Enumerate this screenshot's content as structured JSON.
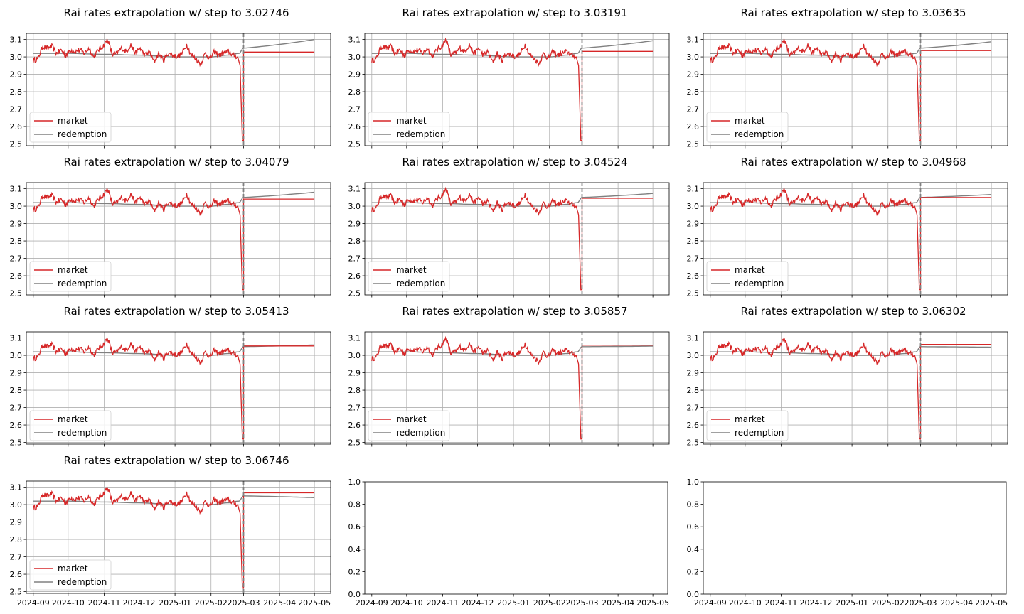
{
  "figure": {
    "panels": [
      {
        "title": "Rai rates extrapolation w/ step to 3.02746",
        "step": 3.02746,
        "redemption_end": 3.1
      },
      {
        "title": "Rai rates extrapolation w/ step to 3.03191",
        "step": 3.03191,
        "redemption_end": 3.093
      },
      {
        "title": "Rai rates extrapolation w/ step to 3.03635",
        "step": 3.03635,
        "redemption_end": 3.087
      },
      {
        "title": "Rai rates extrapolation w/ step to 3.04079",
        "step": 3.04079,
        "redemption_end": 3.08
      },
      {
        "title": "Rai rates extrapolation w/ step to 3.04524",
        "step": 3.04524,
        "redemption_end": 3.073
      },
      {
        "title": "Rai rates extrapolation w/ step to 3.04968",
        "step": 3.04968,
        "redemption_end": 3.067
      },
      {
        "title": "Rai rates extrapolation w/ step to 3.05413",
        "step": 3.05413,
        "redemption_end": 3.06
      },
      {
        "title": "Rai rates extrapolation w/ step to 3.05857",
        "step": 3.05857,
        "redemption_end": 3.053
      },
      {
        "title": "Rai rates extrapolation w/ step to 3.06302",
        "step": 3.06302,
        "redemption_end": 3.047
      },
      {
        "title": "Rai rates extrapolation w/ step to 3.06746",
        "step": 3.06746,
        "redemption_end": 3.04
      }
    ],
    "empty_panel_yticks": [
      "0.0",
      "0.2",
      "0.4",
      "0.6",
      "0.8",
      "1.0"
    ]
  },
  "chart_data": {
    "type": "line",
    "x_ticks": [
      "2024-09",
      "2024-10",
      "2024-11",
      "2024-12",
      "2025-01",
      "2025-02",
      "2025-03",
      "2025-04",
      "2025-05"
    ],
    "y_ticks": [
      "2.5",
      "2.6",
      "2.7",
      "2.8",
      "2.9",
      "3.0",
      "3.1"
    ],
    "ylim": [
      2.49,
      3.135
    ],
    "xlim": [
      "2024-08-26",
      "2025-05-15"
    ],
    "grid": true,
    "legend": [
      "market",
      "redemption"
    ],
    "legend_placement": "lower-left",
    "step_date": "2025-03-01",
    "extrapolation_end": "2025-05-01",
    "colors": {
      "market": "#d62728",
      "redemption": "#808080",
      "step_line": "#808080"
    },
    "market_history": {
      "dates": [
        "2024-09-01",
        "2024-09-05",
        "2024-09-09",
        "2024-09-13",
        "2024-09-17",
        "2024-09-21",
        "2024-09-25",
        "2024-09-29",
        "2024-10-03",
        "2024-10-07",
        "2024-10-11",
        "2024-10-15",
        "2024-10-19",
        "2024-10-23",
        "2024-10-27",
        "2024-10-31",
        "2024-11-04",
        "2024-11-08",
        "2024-11-12",
        "2024-11-16",
        "2024-11-20",
        "2024-11-24",
        "2024-11-28",
        "2024-12-02",
        "2024-12-06",
        "2024-12-10",
        "2024-12-14",
        "2024-12-18",
        "2024-12-22",
        "2024-12-26",
        "2024-12-30",
        "2025-01-03",
        "2025-01-07",
        "2025-01-11",
        "2025-01-15",
        "2025-01-19",
        "2025-01-23",
        "2025-01-27",
        "2025-01-31",
        "2025-02-04",
        "2025-02-08",
        "2025-02-12",
        "2025-02-16",
        "2025-02-20",
        "2025-02-24",
        "2025-02-26",
        "2025-02-28",
        "2025-03-01"
      ],
      "values": [
        2.98,
        2.99,
        3.06,
        3.05,
        3.06,
        3.02,
        3.04,
        3.01,
        3.04,
        3.03,
        3.04,
        3.02,
        3.05,
        3.0,
        3.04,
        3.06,
        3.1,
        3.01,
        3.02,
        3.05,
        3.03,
        3.07,
        3.02,
        3.05,
        3.01,
        3.03,
        2.97,
        3.02,
        2.98,
        3.02,
        3.01,
        3.0,
        3.02,
        3.07,
        3.01,
        2.99,
        2.96,
        3.02,
        2.99,
        3.03,
        3.01,
        3.02,
        3.03,
        3.01,
        3.0,
        2.95,
        2.52,
        2.52
      ]
    },
    "redemption_history": {
      "dates": [
        "2024-09-01",
        "2024-10-01",
        "2024-11-01",
        "2024-12-01",
        "2025-01-01",
        "2025-02-01",
        "2025-02-15",
        "2025-02-25",
        "2025-03-01"
      ],
      "values": [
        3.02,
        3.02,
        3.015,
        3.01,
        3.0,
        3.0,
        3.01,
        3.02,
        3.05
      ]
    }
  }
}
